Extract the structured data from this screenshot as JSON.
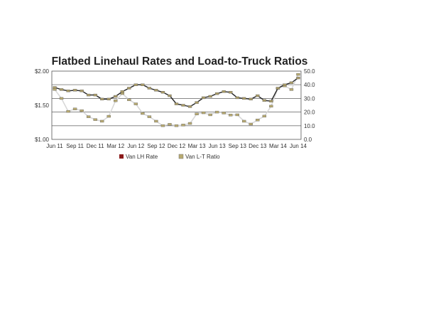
{
  "chart_data": {
    "type": "line",
    "title": "Flatbed Linehaul Rates and Load-to-Truck Ratios",
    "x": [
      "Jun 11",
      "Jul 11",
      "Aug 11",
      "Sep 11",
      "Oct 11",
      "Nov 11",
      "Dec 11",
      "Jan 12",
      "Feb 12",
      "Mar 12",
      "Apr 12",
      "May 12",
      "Jun 12",
      "Jul 12",
      "Aug 12",
      "Sep 12",
      "Oct 12",
      "Nov 12",
      "Dec 12",
      "Jan 13",
      "Feb 13",
      "Mar 13",
      "Apr 13",
      "May 13",
      "Jun 13",
      "Jul 13",
      "Aug 13",
      "Sep 13",
      "Oct 13",
      "Nov 13",
      "Dec 13",
      "Jan 14",
      "Feb 14",
      "Mar 14",
      "Apr 14",
      "May 14",
      "Jun 14"
    ],
    "x_tick_labels": [
      "Jun 11",
      "Sep 11",
      "Dec 11",
      "Mar 12",
      "Jun 12",
      "Sep 12",
      "Dec 12",
      "Mar 13",
      "Jun 13",
      "Sep 13",
      "Dec 13",
      "Mar 14",
      "Jun 14"
    ],
    "y_left": {
      "ylim": [
        1.0,
        2.0
      ],
      "tick_labels": [
        "$2.00",
        "$1.50",
        "$1.00"
      ],
      "ticks": [
        2.0,
        1.5,
        1.0
      ]
    },
    "y_right": {
      "ylim": [
        0,
        50
      ],
      "tick_labels": [
        "50.0",
        "40.0",
        "30.0",
        "20.0",
        "10.0",
        "0.0"
      ],
      "ticks": [
        50,
        40,
        30,
        20,
        10,
        0
      ]
    },
    "gridlines_right": [
      10,
      20,
      30,
      40
    ],
    "legend": {
      "placement": "bottom",
      "entries": [
        "Van LH Rate",
        "Van L-T Ratio"
      ]
    },
    "series": [
      {
        "name": "Van LH Rate",
        "axis": "left",
        "color": "#222222",
        "marker_color": "#a89a66",
        "values": [
          1.76,
          1.73,
          1.71,
          1.72,
          1.71,
          1.65,
          1.65,
          1.59,
          1.59,
          1.63,
          1.7,
          1.75,
          1.8,
          1.8,
          1.75,
          1.72,
          1.69,
          1.64,
          1.52,
          1.5,
          1.48,
          1.54,
          1.61,
          1.63,
          1.67,
          1.7,
          1.69,
          1.61,
          1.6,
          1.59,
          1.64,
          1.57,
          1.56,
          1.75,
          1.8,
          1.83,
          1.9
        ]
      },
      {
        "name": "Van L-T Ratio",
        "axis": "right",
        "color": "#d8d8d8",
        "marker_color": "#b8aa70",
        "values": [
          36.6,
          30.0,
          20.5,
          22.3,
          21.0,
          16.6,
          14.5,
          13.3,
          16.9,
          28.3,
          33.6,
          29.0,
          26.0,
          19.0,
          16.6,
          13.3,
          10.0,
          11.0,
          10.0,
          10.5,
          11.7,
          18.6,
          19.5,
          18.0,
          20.0,
          19.3,
          17.8,
          18.0,
          13.3,
          11.2,
          14.2,
          17.0,
          24.3,
          37.4,
          39.2,
          36.5,
          47.6
        ]
      }
    ],
    "legend_colors": {
      "Van LH Rate": "#8b1a1a",
      "Van L-T Ratio": "#b8aa70"
    }
  }
}
